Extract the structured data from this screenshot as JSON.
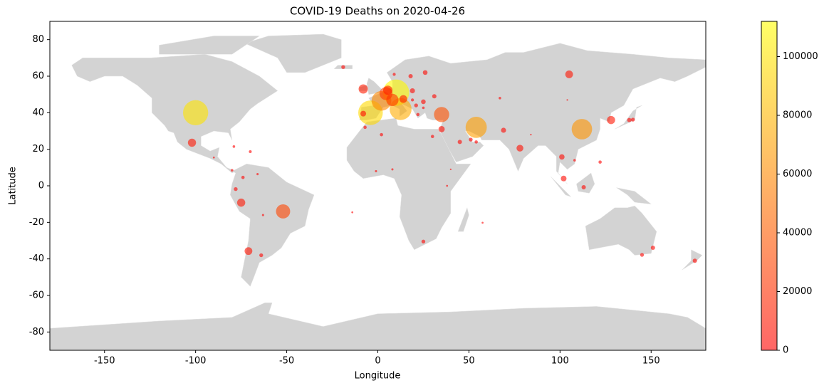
{
  "chart_data": {
    "type": "scatter",
    "title": "COVID-19 Deaths on 2020-04-26",
    "x_label": "Longitude",
    "y_label": "Latitude",
    "xlim": [
      -180,
      180
    ],
    "ylim": [
      -90,
      90
    ],
    "xticks": [
      -150,
      -100,
      -50,
      0,
      50,
      100,
      150
    ],
    "yticks": [
      -80,
      -60,
      -40,
      -20,
      0,
      20,
      40,
      60,
      80
    ],
    "alpha": 0.6,
    "colorbar": {
      "lim": [
        0,
        112000
      ],
      "ticks": [
        0,
        20000,
        40000,
        60000,
        80000,
        100000
      ],
      "colors": [
        "#ff0000",
        "#ffff00"
      ]
    },
    "x": [
      -100,
      -4,
      10,
      2,
      12.5,
      54,
      112,
      35,
      -52,
      4.5,
      8,
      5.5,
      -8,
      -102,
      105,
      -75,
      -71,
      128,
      78,
      35,
      14,
      -8,
      -19,
      19,
      18,
      26,
      31,
      25,
      138,
      102,
      101,
      113,
      151,
      145,
      174,
      69,
      45,
      30,
      25,
      122,
      108,
      -74,
      -78,
      -64,
      2,
      -7,
      -79,
      -70,
      67,
      51,
      54,
      22,
      9,
      21,
      140,
      8,
      -1,
      -14,
      38,
      40,
      57.5,
      19,
      25,
      104,
      84,
      -66,
      -63,
      -80,
      -90
    ],
    "y": [
      40,
      40,
      51,
      46.5,
      42,
      32,
      31,
      39,
      -14,
      50.5,
      47,
      52.3,
      53,
      23.6,
      61,
      -9.2,
      -35.7,
      36,
      20.6,
      31,
      47.5,
      39.5,
      65,
      52,
      60,
      62,
      49,
      46,
      36,
      4,
      15.8,
      -0.8,
      -33.9,
      -37.8,
      -41,
      30.4,
      24,
      27,
      -30.5,
      13,
      14,
      4.6,
      -1.8,
      -38,
      28,
      32,
      21.5,
      18.7,
      48,
      25.3,
      24,
      39,
      61,
      44,
      36.2,
      9,
      8,
      -14.5,
      0,
      9,
      -20.2,
      47,
      42.7,
      47,
      28,
      6.4,
      -16,
      8.5,
      15.5
    ],
    "values": [
      100000,
      95000,
      110000,
      60000,
      75000,
      70000,
      65000,
      35000,
      30000,
      25000,
      22000,
      12000,
      12000,
      9000,
      8000,
      9000,
      8000,
      9000,
      6000,
      5000,
      8000,
      4000,
      1500,
      3000,
      2000,
      2500,
      2000,
      2500,
      2000,
      4000,
      3500,
      2000,
      2000,
      1500,
      2000,
      3000,
      2000,
      1000,
      1500,
      1000,
      500,
      1000,
      1500,
      1500,
      1000,
      1000,
      500,
      700,
      500,
      1500,
      1000,
      1000,
      800,
      1500,
      1500,
      300,
      300,
      200,
      200,
      100,
      200,
      800,
      500,
      100,
      100,
      300,
      300,
      500,
      200
    ]
  }
}
